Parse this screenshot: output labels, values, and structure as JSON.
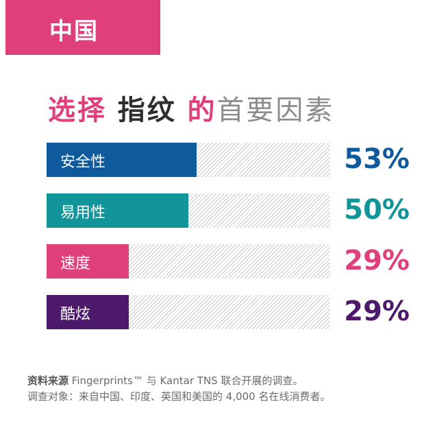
{
  "region": "中国",
  "headline": {
    "part1": "选择",
    "part2": "指纹",
    "part3": "的",
    "part4": "首要因素"
  },
  "chart_data": {
    "type": "bar",
    "orientation": "horizontal",
    "title": "选择 指纹 的首要因素",
    "categories": [
      "安全性",
      "易用性",
      "速度",
      "酷炫"
    ],
    "values": [
      53,
      50,
      29,
      29
    ],
    "value_labels": [
      "53%",
      "50%",
      "29%",
      "29%"
    ],
    "colors": [
      "#0e5a9c",
      "#12959a",
      "#e0407a",
      "#4d1a6b"
    ],
    "xlim": [
      0,
      100
    ]
  },
  "footer": {
    "line1_lead": "资料来源",
    "line1_rest": " Fingerprints™ 与 Kantar TNS 联合开展的调查。",
    "line2": "调查对象：来自中国、印度、英国和美国的 4,000 名在线消费者。"
  }
}
